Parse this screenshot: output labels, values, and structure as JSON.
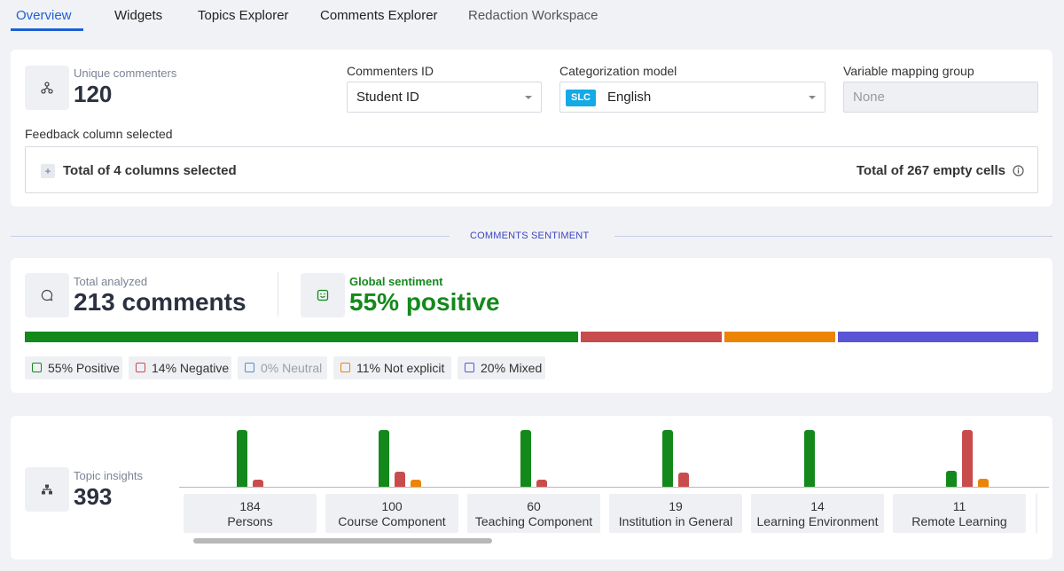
{
  "tabs": [
    {
      "label": "Overview",
      "active": true
    },
    {
      "label": "Widgets",
      "active": false
    },
    {
      "label": "Topics Explorer",
      "active": false
    },
    {
      "label": "Comments Explorer",
      "active": false
    },
    {
      "label": "Redaction Workspace",
      "active": false
    }
  ],
  "config": {
    "unique_commenters_label": "Unique commenters",
    "unique_commenters_value": "120",
    "commenters_id_label": "Commenters ID",
    "commenters_id_value": "Student ID",
    "categorization_label": "Categorization model",
    "categorization_badge": "SLC",
    "categorization_value": "English",
    "variable_mapping_label": "Variable mapping group",
    "variable_mapping_placeholder": "None",
    "feedback_label": "Feedback column selected",
    "columns_selected": "Total of 4 columns selected",
    "empty_cells": "Total of 267 empty cells",
    "expand_symbol": "+"
  },
  "divider": {
    "label": "COMMENTS SENTIMENT"
  },
  "sentiment": {
    "total_label": "Total analyzed",
    "total_value": "213 comments",
    "global_label": "Global sentiment",
    "global_value": "55% positive",
    "breakdown": [
      {
        "label": "55% Positive",
        "pct": 55,
        "color": "#13891b"
      },
      {
        "label": "14% Negative",
        "pct": 14,
        "color": "#c94c4c"
      },
      {
        "label": "0% Neutral",
        "pct": 0,
        "color": "#4a8fd6"
      },
      {
        "label": "11% Not explicit",
        "pct": 11,
        "color": "#ec8405"
      },
      {
        "label": "20% Mixed",
        "pct": 20,
        "color": "#5a55d4"
      }
    ]
  },
  "topics": {
    "label": "Topic insights",
    "value": "393",
    "items": [
      {
        "count": "184",
        "name": "Persons",
        "green": 1.0,
        "red": 0.12,
        "orange": 0
      },
      {
        "count": "100",
        "name": "Course Component",
        "green": 1.0,
        "red": 0.26,
        "orange": 0.13
      },
      {
        "count": "60",
        "name": "Teaching Component",
        "green": 1.0,
        "red": 0.12,
        "orange": 0
      },
      {
        "count": "19",
        "name": "Institution in General",
        "green": 1.0,
        "red": 0.25,
        "orange": 0
      },
      {
        "count": "14",
        "name": "Learning Environment",
        "green": 1.0,
        "red": 0,
        "orange": 0
      },
      {
        "count": "11",
        "name": "Remote Learning",
        "green": 0.28,
        "red": 1.0,
        "orange": 0.14
      }
    ]
  }
}
